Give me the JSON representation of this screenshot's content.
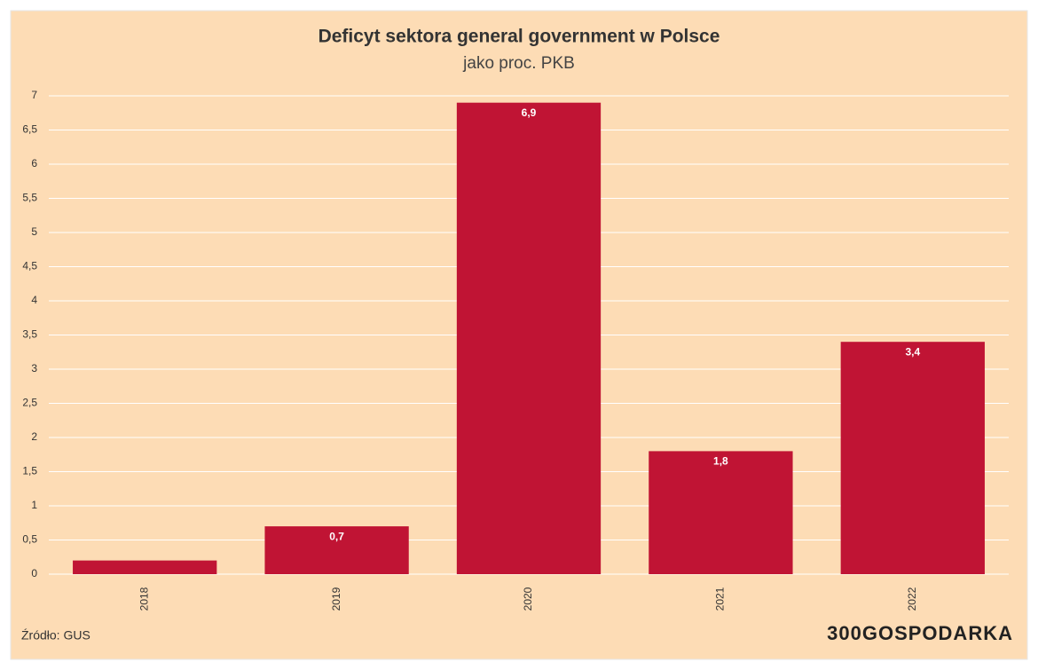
{
  "chart_data": {
    "type": "bar",
    "title": "Deficyt sektora general government w Polsce",
    "subtitle": "jako proc. PKB",
    "categories": [
      "2018",
      "2019",
      "2020",
      "2021",
      "2022"
    ],
    "values": [
      0.2,
      0.7,
      6.9,
      1.8,
      3.4
    ],
    "value_labels": [
      null,
      "0,7",
      "6,9",
      "1,8",
      "3,4"
    ],
    "color": "#c01434",
    "ylim": [
      0,
      7
    ],
    "yticks": [
      0,
      {
        "value": 0.5,
        "label": "0,5"
      },
      1,
      {
        "value": 1.5,
        "label": "1,5"
      },
      2,
      {
        "value": 2.5,
        "label": "2,5"
      },
      3,
      {
        "value": 3.5,
        "label": "3,5"
      },
      4,
      {
        "value": 4.5,
        "label": "4,5"
      },
      5,
      {
        "value": 5.5,
        "label": "5,5"
      },
      6,
      {
        "value": 6.5,
        "label": "6,5"
      },
      7
    ],
    "grid": true,
    "source": "Źródło: GUS",
    "logo": "300GOSPODARKA"
  }
}
